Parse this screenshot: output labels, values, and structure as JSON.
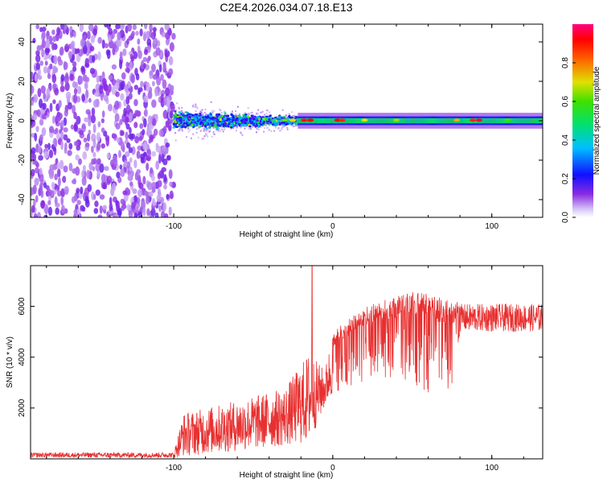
{
  "title": "C2E4.2026.034.07.18.E13",
  "chart_data": [
    {
      "type": "heatmap",
      "xlabel": "Height of straight line (km)",
      "ylabel": "Frequency (Hz)",
      "xlim": [
        -190,
        132
      ],
      "ylim": [
        -49,
        49
      ],
      "xticks": [
        -100,
        0,
        100
      ],
      "yticks": [
        -40,
        -20,
        0,
        20,
        40
      ],
      "regions": [
        {
          "name": "noise",
          "x": [
            -190,
            -100
          ],
          "freq_spread": 49,
          "amplitude": 0.15
        },
        {
          "name": "scatter",
          "x": [
            -100,
            -20
          ],
          "freq_spread": [
            8,
            3
          ],
          "amplitude": 0.4
        },
        {
          "name": "line",
          "x": [
            -20,
            132
          ],
          "freq_spread": 2,
          "amplitude": 0.5
        }
      ],
      "colorbar": {
        "label": "Normalized spectral amplitude",
        "range": [
          0,
          1
        ],
        "ticks": [
          "0.0",
          "0.2",
          "0.4",
          "0.6",
          "0.8"
        ]
      }
    },
    {
      "type": "line",
      "xlabel": "Height of straight line (km)",
      "ylabel": "SNR (10 * v/v)",
      "xlim": [
        -190,
        132
      ],
      "ylim": [
        0,
        7600
      ],
      "xticks": [
        -100,
        0,
        100
      ],
      "yticks": [
        2000,
        4000,
        6000
      ],
      "color": "#e83030",
      "envelope": [
        {
          "x": -190,
          "low": 50,
          "high": 250
        },
        {
          "x": -100,
          "low": 50,
          "high": 250
        },
        {
          "x": -94,
          "low": 100,
          "high": 1800
        },
        {
          "x": -60,
          "low": 300,
          "high": 2300
        },
        {
          "x": -30,
          "low": 500,
          "high": 2800
        },
        {
          "x": -15,
          "low": 600,
          "high": 4200
        },
        {
          "x": -5,
          "low": 2000,
          "high": 3500
        },
        {
          "x": 0,
          "low": 2500,
          "high": 5000
        },
        {
          "x": 20,
          "low": 3000,
          "high": 6000
        },
        {
          "x": 50,
          "low": 3000,
          "high": 6600
        },
        {
          "x": 75,
          "low": 2000,
          "high": 6300
        },
        {
          "x": 80,
          "low": 5000,
          "high": 6100
        },
        {
          "x": 132,
          "low": 5000,
          "high": 6100
        }
      ],
      "spike": {
        "x": -13,
        "value": 7600
      }
    }
  ]
}
